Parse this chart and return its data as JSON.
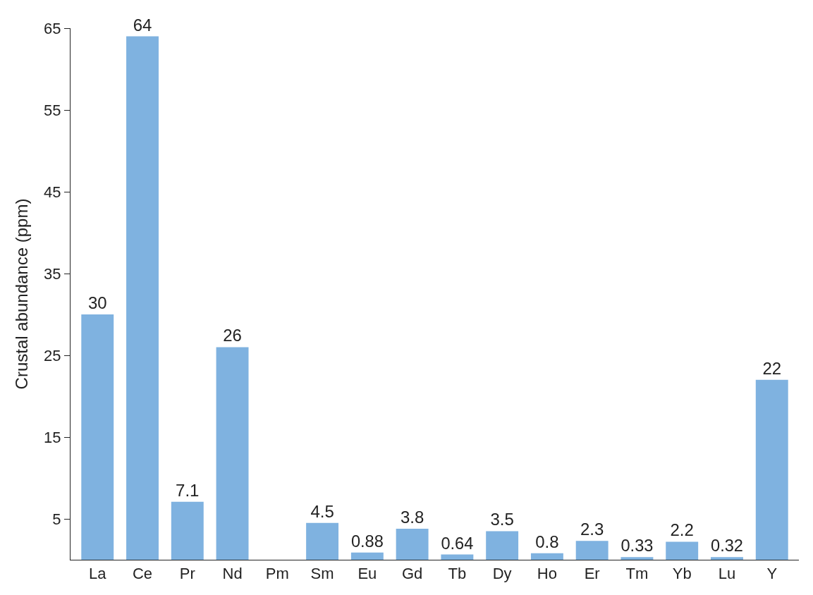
{
  "chart_data": {
    "type": "bar",
    "ylabel": "Crustal abundance (ppm)",
    "categories": [
      "La",
      "Ce",
      "Pr",
      "Nd",
      "Pm",
      "Sm",
      "Eu",
      "Gd",
      "Tb",
      "Dy",
      "Ho",
      "Er",
      "Tm",
      "Yb",
      "Lu",
      "Y"
    ],
    "values": [
      30,
      64,
      7.1,
      26,
      null,
      4.5,
      0.88,
      3.8,
      0.64,
      3.5,
      0.8,
      2.3,
      0.33,
      2.2,
      0.32,
      22
    ],
    "color": "#7fb2e0",
    "ylim": [
      0,
      65
    ],
    "yticks": [
      5,
      15,
      25,
      35,
      45,
      55,
      65
    ],
    "data_labels": true
  }
}
